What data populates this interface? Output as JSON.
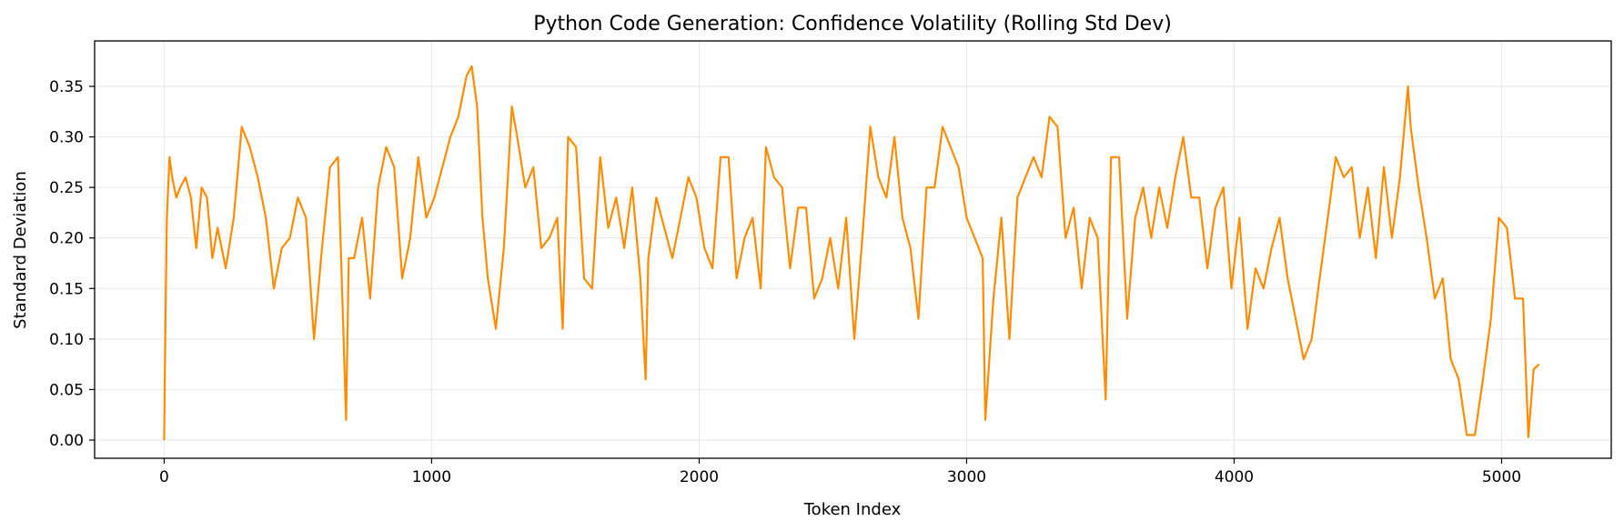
{
  "chart_data": {
    "type": "line",
    "title": "Python Code Generation: Confidence Volatility (Rolling Std Dev)",
    "xlabel": "Token Index",
    "ylabel": "Standard Deviation",
    "xlim": [
      -260,
      5410
    ],
    "ylim": [
      -0.018,
      0.395
    ],
    "xticks": [
      0,
      1000,
      2000,
      3000,
      4000,
      5000
    ],
    "yticks": [
      0.0,
      0.05,
      0.1,
      0.15,
      0.2,
      0.25,
      0.3,
      0.35
    ],
    "ytick_labels": [
      "0.00",
      "0.05",
      "0.10",
      "0.15",
      "0.20",
      "0.25",
      "0.30",
      "0.35"
    ],
    "grid": true,
    "legend": "none",
    "series": [
      {
        "color": "#ff8c00",
        "x": [
          0,
          5,
          10,
          20,
          30,
          45,
          60,
          80,
          100,
          120,
          140,
          160,
          180,
          200,
          230,
          260,
          290,
          320,
          350,
          380,
          410,
          440,
          470,
          500,
          530,
          560,
          590,
          620,
          650,
          680,
          690,
          710,
          740,
          770,
          800,
          830,
          860,
          890,
          920,
          950,
          980,
          1010,
          1040,
          1070,
          1100,
          1130,
          1150,
          1170,
          1190,
          1210,
          1240,
          1270,
          1300,
          1320,
          1350,
          1380,
          1410,
          1440,
          1470,
          1490,
          1510,
          1540,
          1570,
          1600,
          1630,
          1660,
          1690,
          1720,
          1750,
          1780,
          1800,
          1810,
          1840,
          1870,
          1900,
          1930,
          1960,
          1990,
          2020,
          2050,
          2080,
          2110,
          2140,
          2170,
          2200,
          2230,
          2250,
          2280,
          2310,
          2340,
          2370,
          2400,
          2430,
          2460,
          2490,
          2520,
          2550,
          2580,
          2610,
          2640,
          2670,
          2700,
          2730,
          2760,
          2790,
          2820,
          2850,
          2880,
          2910,
          2940,
          2970,
          3000,
          3030,
          3060,
          3070,
          3100,
          3130,
          3160,
          3190,
          3220,
          3250,
          3280,
          3310,
          3340,
          3370,
          3400,
          3430,
          3460,
          3490,
          3520,
          3540,
          3570,
          3600,
          3630,
          3660,
          3690,
          3720,
          3750,
          3780,
          3810,
          3840,
          3870,
          3900,
          3930,
          3960,
          3990,
          4020,
          4050,
          4080,
          4110,
          4140,
          4170,
          4200,
          4230,
          4260,
          4290,
          4320,
          4350,
          4380,
          4410,
          4440,
          4470,
          4500,
          4530,
          4560,
          4590,
          4620,
          4650,
          4660,
          4690,
          4720,
          4750,
          4780,
          4810,
          4840,
          4870,
          4900,
          4930,
          4960,
          4990,
          5020,
          5050,
          5080,
          5100,
          5120,
          5140
        ],
        "y": [
          0.0,
          0.12,
          0.22,
          0.28,
          0.26,
          0.24,
          0.25,
          0.26,
          0.24,
          0.19,
          0.25,
          0.24,
          0.18,
          0.21,
          0.17,
          0.22,
          0.31,
          0.29,
          0.26,
          0.22,
          0.15,
          0.19,
          0.2,
          0.24,
          0.22,
          0.1,
          0.19,
          0.27,
          0.28,
          0.02,
          0.18,
          0.18,
          0.22,
          0.14,
          0.25,
          0.29,
          0.27,
          0.16,
          0.2,
          0.28,
          0.22,
          0.24,
          0.27,
          0.3,
          0.32,
          0.36,
          0.37,
          0.33,
          0.22,
          0.16,
          0.11,
          0.19,
          0.33,
          0.3,
          0.25,
          0.27,
          0.19,
          0.2,
          0.22,
          0.11,
          0.3,
          0.29,
          0.16,
          0.15,
          0.28,
          0.21,
          0.24,
          0.19,
          0.25,
          0.16,
          0.06,
          0.18,
          0.24,
          0.21,
          0.18,
          0.22,
          0.26,
          0.24,
          0.19,
          0.17,
          0.28,
          0.28,
          0.16,
          0.2,
          0.22,
          0.15,
          0.29,
          0.26,
          0.25,
          0.17,
          0.23,
          0.23,
          0.14,
          0.16,
          0.2,
          0.15,
          0.22,
          0.1,
          0.2,
          0.31,
          0.26,
          0.24,
          0.3,
          0.22,
          0.19,
          0.12,
          0.25,
          0.25,
          0.31,
          0.29,
          0.27,
          0.22,
          0.2,
          0.18,
          0.02,
          0.14,
          0.22,
          0.1,
          0.24,
          0.26,
          0.28,
          0.26,
          0.32,
          0.31,
          0.2,
          0.23,
          0.15,
          0.22,
          0.2,
          0.04,
          0.28,
          0.28,
          0.12,
          0.22,
          0.25,
          0.2,
          0.25,
          0.21,
          0.26,
          0.3,
          0.24,
          0.24,
          0.17,
          0.23,
          0.25,
          0.15,
          0.22,
          0.11,
          0.17,
          0.15,
          0.19,
          0.22,
          0.16,
          0.12,
          0.08,
          0.1,
          0.16,
          0.22,
          0.28,
          0.26,
          0.27,
          0.2,
          0.25,
          0.18,
          0.27,
          0.2,
          0.26,
          0.35,
          0.31,
          0.25,
          0.2,
          0.14,
          0.16,
          0.08,
          0.06,
          0.005,
          0.005,
          0.06,
          0.12,
          0.22,
          0.21,
          0.14,
          0.14,
          0.003,
          0.07,
          0.075
        ]
      }
    ]
  }
}
